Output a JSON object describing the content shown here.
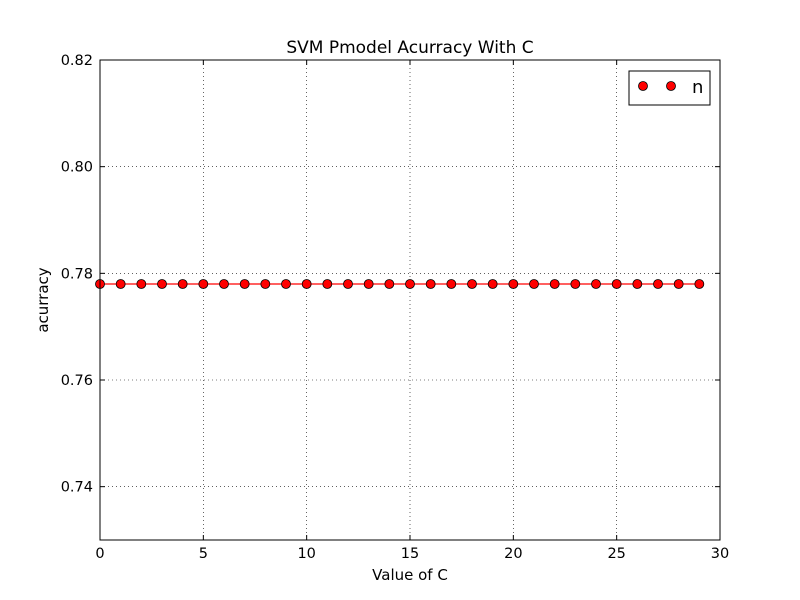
{
  "chart_data": {
    "type": "line",
    "title": "SVM Pmodel Acurracy With C",
    "xlabel": "Value of C",
    "ylabel": "acurracy",
    "xlim": [
      0,
      30
    ],
    "ylim": [
      0.73,
      0.82
    ],
    "xticks": [
      "0",
      "5",
      "10",
      "15",
      "20",
      "25",
      "30"
    ],
    "yticks": [
      "0.74",
      "0.76",
      "0.78",
      "0.80",
      "0.82"
    ],
    "grid": true,
    "legend_position": "top-right",
    "series": [
      {
        "name": "n",
        "color": "#ff0000",
        "marker": "circle",
        "x": [
          0,
          1,
          2,
          3,
          4,
          5,
          6,
          7,
          8,
          9,
          10,
          11,
          12,
          13,
          14,
          15,
          16,
          17,
          18,
          19,
          20,
          21,
          22,
          23,
          24,
          25,
          26,
          27,
          28,
          29
        ],
        "y": [
          0.778,
          0.778,
          0.778,
          0.778,
          0.778,
          0.778,
          0.778,
          0.778,
          0.778,
          0.778,
          0.778,
          0.778,
          0.778,
          0.778,
          0.778,
          0.778,
          0.778,
          0.778,
          0.778,
          0.778,
          0.778,
          0.778,
          0.778,
          0.778,
          0.778,
          0.778,
          0.778,
          0.778,
          0.778,
          0.778
        ]
      }
    ]
  }
}
